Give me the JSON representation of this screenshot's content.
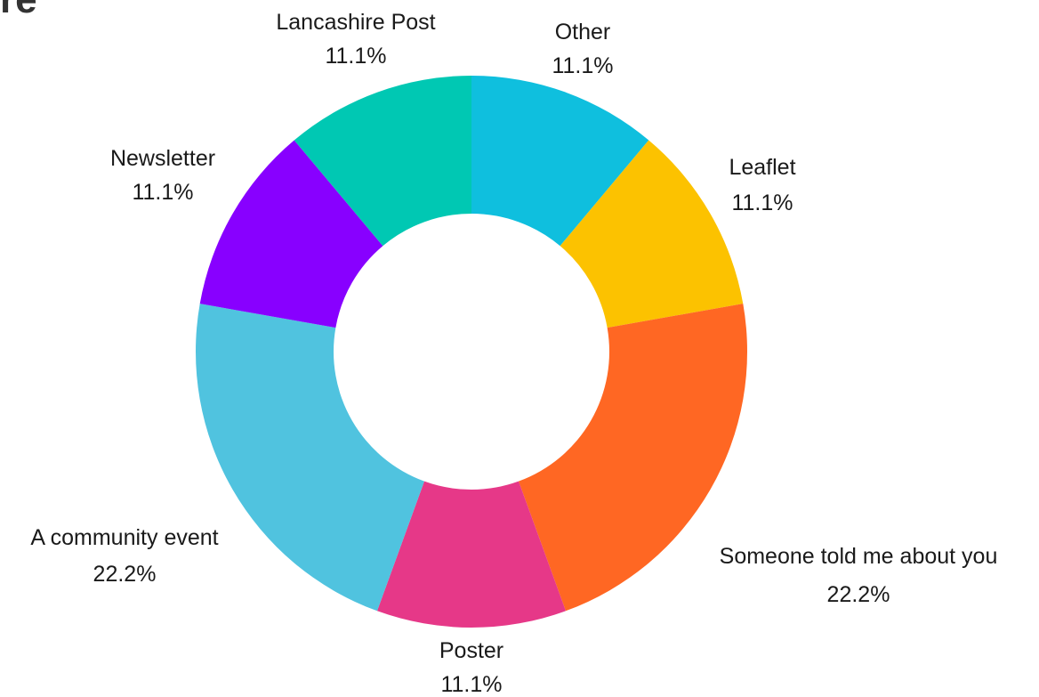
{
  "header": {
    "title_fragment": "re"
  },
  "chart_data": {
    "type": "pie",
    "variant": "donut",
    "slices": [
      {
        "label": "Other",
        "value": 11.1,
        "value_label": "11.1%",
        "color": "#0fbfde"
      },
      {
        "label": "Leaflet",
        "value": 11.1,
        "value_label": "11.1%",
        "color": "#fcc200"
      },
      {
        "label": "Someone told me about you",
        "value": 22.2,
        "value_label": "22.2%",
        "color": "#ff6723"
      },
      {
        "label": "Poster",
        "value": 11.1,
        "value_label": "11.1%",
        "color": "#e63888"
      },
      {
        "label": "A community event",
        "value": 22.2,
        "value_label": "22.2%",
        "color": "#50c3df"
      },
      {
        "label": "Newsletter",
        "value": 11.1,
        "value_label": "11.1%",
        "color": "#8800ff"
      },
      {
        "label": "Lancashire Post",
        "value": 11.1,
        "value_label": "11.1%",
        "color": "#00c8b3"
      }
    ],
    "start_angle": "12 o'clock",
    "direction": "clockwise",
    "legend": "none",
    "labels": "outside"
  }
}
